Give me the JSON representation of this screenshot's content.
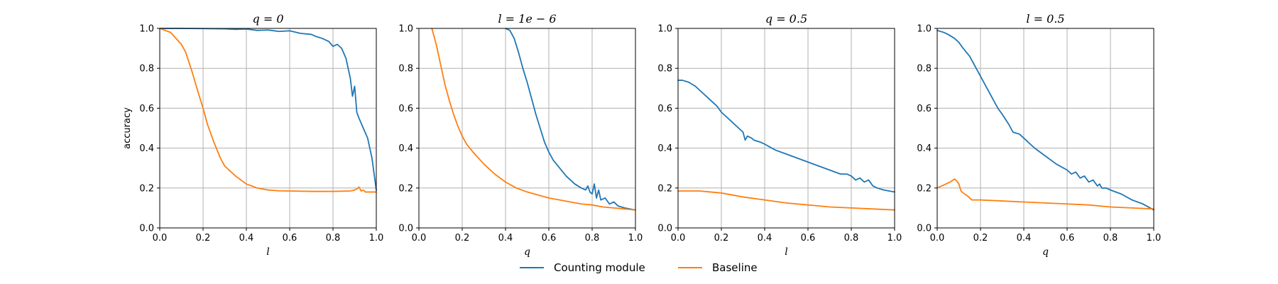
{
  "chart_data": [
    {
      "type": "line",
      "title": "q = 0",
      "xlabel": "l",
      "ylabel": "accuracy",
      "xlim": [
        0,
        1
      ],
      "ylim": [
        0,
        1
      ],
      "grid": true,
      "xticks": [
        "0.0",
        "0.2",
        "0.4",
        "0.6",
        "0.8",
        "1.0"
      ],
      "yticks": [
        "0.0",
        "0.2",
        "0.4",
        "0.6",
        "0.8",
        "1.0"
      ],
      "series": [
        {
          "name": "Counting module",
          "x": [
            0,
            0.1,
            0.2,
            0.3,
            0.35,
            0.4,
            0.45,
            0.5,
            0.55,
            0.6,
            0.65,
            0.7,
            0.72,
            0.75,
            0.78,
            0.8,
            0.82,
            0.84,
            0.86,
            0.87,
            0.88,
            0.89,
            0.9,
            0.91,
            0.92,
            0.94,
            0.96,
            0.98,
            1.0
          ],
          "y": [
            1.0,
            1.0,
            0.999,
            0.998,
            0.995,
            0.997,
            0.99,
            0.992,
            0.985,
            0.988,
            0.975,
            0.97,
            0.96,
            0.95,
            0.935,
            0.91,
            0.92,
            0.9,
            0.85,
            0.8,
            0.75,
            0.66,
            0.71,
            0.58,
            0.55,
            0.5,
            0.45,
            0.35,
            0.19
          ]
        },
        {
          "name": "Baseline",
          "x": [
            0,
            0.05,
            0.1,
            0.12,
            0.15,
            0.18,
            0.2,
            0.22,
            0.25,
            0.28,
            0.3,
            0.35,
            0.4,
            0.45,
            0.5,
            0.55,
            0.6,
            0.7,
            0.8,
            0.88,
            0.9,
            0.91,
            0.92,
            0.93,
            0.94,
            0.95,
            0.97,
            1.0
          ],
          "y": [
            1.0,
            0.98,
            0.92,
            0.88,
            0.78,
            0.67,
            0.6,
            0.52,
            0.43,
            0.35,
            0.31,
            0.26,
            0.22,
            0.2,
            0.19,
            0.186,
            0.185,
            0.183,
            0.183,
            0.185,
            0.19,
            0.195,
            0.205,
            0.185,
            0.19,
            0.18,
            0.18,
            0.18
          ]
        }
      ]
    },
    {
      "type": "line",
      "title": "l = 1e − 6",
      "xlabel": "q",
      "ylabel": "",
      "xlim": [
        0,
        1
      ],
      "ylim": [
        0,
        1
      ],
      "grid": true,
      "xticks": [
        "0.0",
        "0.2",
        "0.4",
        "0.6",
        "0.8",
        "1.0"
      ],
      "yticks": [
        "0.0",
        "0.2",
        "0.4",
        "0.6",
        "0.8",
        "1.0"
      ],
      "series": [
        {
          "name": "Counting module",
          "x": [
            0.4,
            0.42,
            0.44,
            0.46,
            0.48,
            0.5,
            0.52,
            0.54,
            0.56,
            0.58,
            0.6,
            0.62,
            0.65,
            0.68,
            0.7,
            0.72,
            0.75,
            0.77,
            0.78,
            0.79,
            0.8,
            0.81,
            0.82,
            0.83,
            0.84,
            0.86,
            0.88,
            0.9,
            0.92,
            0.95,
            1.0
          ],
          "y": [
            1.0,
            0.99,
            0.95,
            0.88,
            0.8,
            0.73,
            0.65,
            0.57,
            0.5,
            0.43,
            0.38,
            0.34,
            0.3,
            0.26,
            0.24,
            0.22,
            0.2,
            0.19,
            0.21,
            0.18,
            0.17,
            0.22,
            0.15,
            0.19,
            0.14,
            0.15,
            0.12,
            0.13,
            0.11,
            0.1,
            0.09
          ]
        },
        {
          "name": "Baseline",
          "x": [
            0.06,
            0.08,
            0.1,
            0.12,
            0.14,
            0.16,
            0.18,
            0.2,
            0.22,
            0.25,
            0.3,
            0.35,
            0.4,
            0.45,
            0.5,
            0.55,
            0.6,
            0.65,
            0.7,
            0.75,
            0.8,
            0.85,
            0.9,
            0.95,
            1.0
          ],
          "y": [
            1.0,
            0.92,
            0.82,
            0.72,
            0.64,
            0.57,
            0.51,
            0.46,
            0.42,
            0.38,
            0.32,
            0.27,
            0.23,
            0.2,
            0.18,
            0.165,
            0.15,
            0.14,
            0.13,
            0.12,
            0.115,
            0.105,
            0.1,
            0.095,
            0.09
          ]
        }
      ]
    },
    {
      "type": "line",
      "title": "q = 0.5",
      "xlabel": "l",
      "ylabel": "",
      "xlim": [
        0,
        1
      ],
      "ylim": [
        0,
        1
      ],
      "grid": true,
      "xticks": [
        "0.0",
        "0.2",
        "0.4",
        "0.6",
        "0.8",
        "1.0"
      ],
      "yticks": [
        "0.0",
        "0.2",
        "0.4",
        "0.6",
        "0.8",
        "1.0"
      ],
      "series": [
        {
          "name": "Counting module",
          "x": [
            0,
            0.02,
            0.05,
            0.08,
            0.1,
            0.12,
            0.15,
            0.18,
            0.2,
            0.22,
            0.25,
            0.28,
            0.3,
            0.31,
            0.32,
            0.34,
            0.35,
            0.38,
            0.4,
            0.45,
            0.5,
            0.55,
            0.6,
            0.65,
            0.7,
            0.75,
            0.78,
            0.8,
            0.82,
            0.84,
            0.86,
            0.88,
            0.9,
            0.92,
            0.95,
            1.0
          ],
          "y": [
            0.74,
            0.74,
            0.73,
            0.71,
            0.69,
            0.67,
            0.64,
            0.61,
            0.58,
            0.56,
            0.53,
            0.5,
            0.48,
            0.44,
            0.46,
            0.45,
            0.44,
            0.43,
            0.42,
            0.39,
            0.37,
            0.35,
            0.33,
            0.31,
            0.29,
            0.27,
            0.27,
            0.26,
            0.24,
            0.25,
            0.23,
            0.24,
            0.21,
            0.2,
            0.19,
            0.18
          ]
        },
        {
          "name": "Baseline",
          "x": [
            0,
            0.05,
            0.1,
            0.15,
            0.2,
            0.3,
            0.4,
            0.5,
            0.6,
            0.7,
            0.8,
            0.9,
            1.0
          ],
          "y": [
            0.185,
            0.185,
            0.185,
            0.18,
            0.175,
            0.155,
            0.14,
            0.125,
            0.115,
            0.105,
            0.1,
            0.095,
            0.09
          ]
        }
      ]
    },
    {
      "type": "line",
      "title": "l = 0.5",
      "xlabel": "q",
      "ylabel": "",
      "xlim": [
        0,
        1
      ],
      "ylim": [
        0,
        1
      ],
      "grid": true,
      "xticks": [
        "0.0",
        "0.2",
        "0.4",
        "0.6",
        "0.8",
        "1.0"
      ],
      "yticks": [
        "0.0",
        "0.2",
        "0.4",
        "0.6",
        "0.8",
        "1.0"
      ],
      "series": [
        {
          "name": "Counting module",
          "x": [
            0,
            0.03,
            0.05,
            0.08,
            0.1,
            0.12,
            0.15,
            0.18,
            0.2,
            0.22,
            0.25,
            0.28,
            0.3,
            0.33,
            0.35,
            0.38,
            0.4,
            0.45,
            0.5,
            0.55,
            0.6,
            0.62,
            0.64,
            0.66,
            0.68,
            0.7,
            0.72,
            0.74,
            0.75,
            0.76,
            0.78,
            0.8,
            0.85,
            0.9,
            0.95,
            1.0
          ],
          "y": [
            0.99,
            0.98,
            0.97,
            0.95,
            0.93,
            0.9,
            0.86,
            0.8,
            0.76,
            0.72,
            0.66,
            0.6,
            0.57,
            0.52,
            0.48,
            0.47,
            0.45,
            0.4,
            0.36,
            0.32,
            0.29,
            0.27,
            0.28,
            0.25,
            0.26,
            0.23,
            0.24,
            0.21,
            0.22,
            0.2,
            0.2,
            0.19,
            0.17,
            0.14,
            0.12,
            0.09
          ]
        },
        {
          "name": "Baseline",
          "x": [
            0,
            0.02,
            0.04,
            0.06,
            0.08,
            0.09,
            0.1,
            0.11,
            0.12,
            0.14,
            0.16,
            0.2,
            0.3,
            0.4,
            0.5,
            0.6,
            0.7,
            0.8,
            0.9,
            1.0
          ],
          "y": [
            0.2,
            0.21,
            0.22,
            0.23,
            0.245,
            0.235,
            0.22,
            0.185,
            0.175,
            0.16,
            0.14,
            0.14,
            0.135,
            0.13,
            0.125,
            0.12,
            0.115,
            0.105,
            0.1,
            0.095
          ]
        }
      ]
    }
  ],
  "legend": {
    "placement": "bottom-center",
    "items": [
      {
        "label": "Counting module",
        "color": "#1f77b4"
      },
      {
        "label": "Baseline",
        "color": "#ff7f0e"
      }
    ]
  },
  "colors": {
    "series": [
      "#1f77b4",
      "#ff7f0e"
    ],
    "grid": "#b0b0b0",
    "axes": "#000000"
  }
}
